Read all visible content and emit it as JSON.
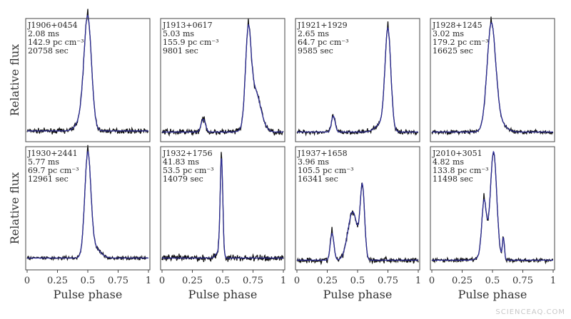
{
  "chart_data": {
    "type": "line",
    "title": "",
    "xlabel": "Pulse phase",
    "ylabel": "Relative flux",
    "xlim": [
      0,
      1
    ],
    "xticks": [
      "0",
      "0.25",
      "0.5",
      "0.75",
      "1"
    ],
    "series_colors": {
      "data": "#111111",
      "model": "#2b2b9a"
    },
    "panels": [
      {
        "name": "J1906+0454",
        "period": "2.08 ms",
        "dm": "142.9 pc cm⁻³",
        "tobs": "20758 sec",
        "baseline": 0.06,
        "noise": 0.02,
        "components": [
          [
            0.5,
            0.03,
            0.95
          ],
          [
            0.47,
            0.05,
            0.15
          ]
        ]
      },
      {
        "name": "J1913+0617",
        "period": "5.03 ms",
        "dm": "155.9 pc cm⁻³",
        "tobs": "9801 sec",
        "baseline": 0.05,
        "noise": 0.025,
        "components": [
          [
            0.71,
            0.022,
            0.75
          ],
          [
            0.76,
            0.05,
            0.4
          ],
          [
            0.34,
            0.018,
            0.12
          ]
        ]
      },
      {
        "name": "J1921+1929",
        "period": "2.65 ms",
        "dm": "64.7 pc cm⁻³",
        "tobs": "9585 sec",
        "baseline": 0.05,
        "noise": 0.02,
        "components": [
          [
            0.75,
            0.024,
            0.92
          ],
          [
            0.3,
            0.015,
            0.15
          ],
          [
            0.7,
            0.05,
            0.08
          ]
        ]
      },
      {
        "name": "J1928+1245",
        "period": "3.02 ms",
        "dm": "179.2 pc cm⁻³",
        "tobs": "16625 sec",
        "baseline": 0.05,
        "noise": 0.018,
        "components": [
          [
            0.49,
            0.035,
            0.92
          ],
          [
            0.53,
            0.06,
            0.12
          ]
        ]
      },
      {
        "name": "J1930+2441",
        "period": "5.77 ms",
        "dm": "69.7 pc cm⁻³",
        "tobs": "12961 sec",
        "baseline": 0.07,
        "noise": 0.015,
        "components": [
          [
            0.5,
            0.025,
            0.93
          ],
          [
            0.55,
            0.05,
            0.1
          ]
        ]
      },
      {
        "name": "J1932+1756",
        "period": "41.83 ms",
        "dm": "53.5 pc cm⁻³",
        "tobs": "14079 sec",
        "baseline": 0.07,
        "noise": 0.03,
        "components": [
          [
            0.49,
            0.011,
            0.92
          ],
          [
            0.46,
            0.02,
            0.05
          ]
        ]
      },
      {
        "name": "J1937+1658",
        "period": "3.96 ms",
        "dm": "105.5 pc cm⁻³",
        "tobs": "16341 sec",
        "baseline": 0.05,
        "noise": 0.025,
        "components": [
          [
            0.29,
            0.015,
            0.25
          ],
          [
            0.46,
            0.04,
            0.45
          ],
          [
            0.54,
            0.018,
            0.65
          ]
        ]
      },
      {
        "name": "J2010+3051",
        "period": "4.82 ms",
        "dm": "133.8 pc cm⁻³",
        "tobs": "11498 sec",
        "baseline": 0.05,
        "noise": 0.018,
        "components": [
          [
            0.43,
            0.018,
            0.45
          ],
          [
            0.51,
            0.025,
            0.9
          ],
          [
            0.59,
            0.008,
            0.2
          ],
          [
            0.47,
            0.05,
            0.15
          ]
        ]
      }
    ]
  },
  "watermark": "SCIENCEAQ.COM"
}
